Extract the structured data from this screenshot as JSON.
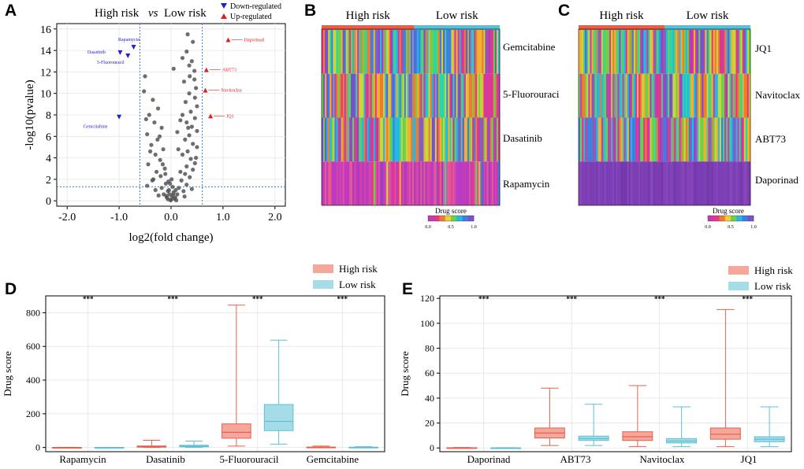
{
  "panels": {
    "a": {
      "letter": "A"
    },
    "b": {
      "letter": "B"
    },
    "c": {
      "letter": "C"
    },
    "d": {
      "letter": "D"
    },
    "e": {
      "letter": "E"
    }
  },
  "colors": {
    "high_risk": "#e8604c",
    "low_risk": "#5bc0d6",
    "high_fill": "#f4a79a",
    "low_fill": "#a6dbe8",
    "down_marker": "#2020d0",
    "up_marker": "#e02020",
    "point": "#555555",
    "cutoff_line": "#3a7fd0"
  },
  "legend_text": {
    "high": "High risk",
    "low": "Low risk",
    "drug_score_title": "Drug score",
    "colorbar_ticks": [
      "0.0",
      "0.5",
      "1.0"
    ]
  },
  "chart_data": [
    {
      "panel": "A",
      "type": "scatter",
      "title": {
        "left": "High risk",
        "vs": "vs",
        "right": "Low risk"
      },
      "xlabel": "log2(fold change)",
      "ylabel": "-log10(pvalue)",
      "xlim": [
        -2.2,
        2.2
      ],
      "ylim": [
        -0.5,
        16.5
      ],
      "xticks": [
        -2.0,
        -1.0,
        0.0,
        1.0,
        2.0
      ],
      "xtick_labels": [
        "-2.0",
        "-1.0",
        "0.0",
        "1.0",
        "2.0"
      ],
      "yticks": [
        0,
        2,
        4,
        6,
        8,
        10,
        12,
        14,
        16
      ],
      "cutoff_x": [
        -0.6,
        0.6
      ],
      "cutoff_y": 1.3,
      "legend": [
        {
          "label": "Down-regulated",
          "marker": "down-triangle"
        },
        {
          "label": "Up-regulated",
          "marker": "up-triangle"
        }
      ],
      "labeled_points": [
        {
          "name": "Rapamycin",
          "x": -0.72,
          "y": 14.3,
          "dir": "down"
        },
        {
          "name": "Dasatinib",
          "x": -0.98,
          "y": 13.8,
          "dir": "down"
        },
        {
          "name": "5-Fluorouracil",
          "x": -0.83,
          "y": 13.5,
          "dir": "down"
        },
        {
          "name": "Gemcitabine",
          "x": -1.0,
          "y": 7.8,
          "dir": "down"
        },
        {
          "name": "Daporinad",
          "x": 1.1,
          "y": 15.0,
          "dir": "up"
        },
        {
          "name": "ABT73",
          "x": 0.68,
          "y": 12.2,
          "dir": "up"
        },
        {
          "name": "Navitoclax",
          "x": 0.66,
          "y": 10.3,
          "dir": "up"
        },
        {
          "name": "JQ1",
          "x": 0.76,
          "y": 7.9,
          "dir": "up"
        }
      ],
      "points": [
        [
          0.32,
          15.5
        ],
        [
          0.42,
          14.8
        ],
        [
          0.3,
          13.9
        ],
        [
          0.22,
          13.3
        ],
        [
          0.4,
          13.0
        ],
        [
          0.05,
          12.3
        ],
        [
          0.45,
          12.1
        ],
        [
          0.36,
          11.6
        ],
        [
          0.25,
          11.1
        ],
        [
          0.48,
          10.5
        ],
        [
          0.35,
          10.0
        ],
        [
          0.46,
          9.6
        ],
        [
          0.28,
          9.2
        ],
        [
          0.5,
          8.8
        ],
        [
          0.38,
          8.3
        ],
        [
          0.22,
          8.0
        ],
        [
          0.46,
          7.7
        ],
        [
          0.3,
          7.3
        ],
        [
          0.4,
          6.9
        ],
        [
          0.5,
          6.5
        ],
        [
          0.35,
          6.1
        ],
        [
          0.27,
          5.7
        ],
        [
          0.42,
          5.3
        ],
        [
          0.5,
          5.0
        ],
        [
          0.32,
          4.6
        ],
        [
          0.22,
          4.3
        ],
        [
          0.38,
          3.9
        ],
        [
          0.46,
          3.5
        ],
        [
          0.3,
          3.2
        ],
        [
          0.42,
          2.9
        ],
        [
          0.27,
          2.5
        ],
        [
          0.36,
          2.2
        ],
        [
          0.2,
          1.9
        ],
        [
          0.3,
          1.5
        ],
        [
          0.15,
          1.2
        ],
        [
          0.24,
          0.9
        ],
        [
          0.12,
          0.6
        ],
        [
          0.08,
          0.3
        ],
        [
          0.18,
          2.7
        ],
        [
          0.14,
          4.8
        ],
        [
          0.12,
          6.4
        ],
        [
          0.35,
          12.6
        ],
        [
          0.45,
          11.3
        ],
        [
          0.18,
          7.5
        ],
        [
          0.48,
          4.0
        ],
        [
          0.4,
          1.1
        ],
        [
          0.26,
          0.4
        ],
        [
          0.33,
          6.8
        ],
        [
          -0.5,
          11.6
        ],
        [
          -0.52,
          10.2
        ],
        [
          -0.35,
          9.4
        ],
        [
          -0.25,
          8.6
        ],
        [
          -0.42,
          8.0
        ],
        [
          -0.32,
          7.3
        ],
        [
          -0.18,
          6.8
        ],
        [
          -0.46,
          6.2
        ],
        [
          -0.26,
          5.7
        ],
        [
          -0.38,
          5.2
        ],
        [
          -0.15,
          4.8
        ],
        [
          -0.3,
          4.3
        ],
        [
          -0.21,
          3.8
        ],
        [
          -0.44,
          3.4
        ],
        [
          -0.12,
          3.0
        ],
        [
          -0.28,
          2.7
        ],
        [
          -0.2,
          2.3
        ],
        [
          -0.36,
          1.9
        ],
        [
          -0.1,
          1.6
        ],
        [
          -0.18,
          1.2
        ],
        [
          -0.06,
          0.9
        ],
        [
          -0.14,
          0.6
        ],
        [
          -0.08,
          0.3
        ],
        [
          -0.3,
          1.0
        ],
        [
          -0.4,
          4.6
        ],
        [
          -0.22,
          6.0
        ],
        [
          -0.48,
          7.6
        ],
        [
          -0.16,
          3.4
        ],
        [
          -0.34,
          2.0
        ],
        [
          -0.11,
          2.5
        ],
        [
          -0.24,
          0.5
        ],
        [
          -0.46,
          1.4
        ],
        [
          0.0,
          0.1
        ],
        [
          0.02,
          0.4
        ],
        [
          -0.03,
          0.6
        ],
        [
          0.05,
          0.8
        ],
        [
          -0.04,
          1.0
        ],
        [
          0.03,
          1.3
        ],
        [
          -0.02,
          1.6
        ],
        [
          0.06,
          0.2
        ],
        [
          -0.06,
          0.15
        ],
        [
          0.09,
          1.0
        ],
        [
          -0.09,
          0.45
        ],
        [
          0.01,
          2.0
        ],
        [
          0.1,
          0.05
        ],
        [
          -0.01,
          0.05
        ],
        [
          0.04,
          0.6
        ],
        [
          -0.05,
          1.8
        ]
      ]
    },
    {
      "panel": "B",
      "type": "heatmap",
      "column_groups": [
        "High risk",
        "Low risk"
      ],
      "group_split": 0.52,
      "rows": [
        {
          "label": "Gemcitabine",
          "palette": "rainbow"
        },
        {
          "label": "5-Fluorouracil",
          "palette": "rainbow"
        },
        {
          "label": "Dasatinib",
          "palette": "rainbow"
        },
        {
          "label": "Rapamycin",
          "palette": "magenta",
          "trend": 0.35
        }
      ],
      "colorbar": {
        "title": "Drug score",
        "range": [
          0.0,
          1.0
        ],
        "ticks": [
          "0.0",
          "0.5",
          "1.0"
        ]
      }
    },
    {
      "panel": "C",
      "type": "heatmap",
      "column_groups": [
        "High risk",
        "Low risk"
      ],
      "group_split": 0.5,
      "rows": [
        {
          "label": "JQ1",
          "palette": "rainbow"
        },
        {
          "label": "Navitoclax",
          "palette": "rainbow"
        },
        {
          "label": "ABT73",
          "palette": "rainbow"
        },
        {
          "label": "Daporinad",
          "palette": "purple"
        }
      ],
      "colorbar": {
        "title": "Drug score",
        "range": [
          0.0,
          1.0
        ],
        "ticks": [
          "0.0",
          "0.5",
          "1.0"
        ]
      }
    },
    {
      "panel": "D",
      "type": "box",
      "ylabel": "Drug score",
      "ylim": [
        -25,
        900
      ],
      "yticks": [
        0,
        200,
        400,
        600,
        800
      ],
      "categories": [
        "Rapamycin",
        "Dasatinib",
        "5-Fluorouracil",
        "Gemcitabine"
      ],
      "significance": [
        "***",
        "***",
        "***",
        "***"
      ],
      "series": [
        {
          "name": "High risk",
          "boxes": [
            {
              "min": 0,
              "q1": 0,
              "median": 0,
              "q3": 0.5,
              "max": 1
            },
            {
              "min": 0,
              "q1": 2,
              "median": 5,
              "q3": 9,
              "max": 43
            },
            {
              "min": 8,
              "q1": 55,
              "median": 90,
              "q3": 140,
              "max": 845
            },
            {
              "min": 0,
              "q1": 0.5,
              "median": 1,
              "q3": 2.5,
              "max": 8
            }
          ]
        },
        {
          "name": "Low risk",
          "boxes": [
            {
              "min": 0,
              "q1": 0,
              "median": 0,
              "q3": 0.3,
              "max": 0.5
            },
            {
              "min": 0,
              "q1": 4,
              "median": 8,
              "q3": 13,
              "max": 38
            },
            {
              "min": 20,
              "q1": 100,
              "median": 155,
              "q3": 255,
              "max": 637
            },
            {
              "min": 0,
              "q1": 0.3,
              "median": 0.8,
              "q3": 1.8,
              "max": 5
            }
          ]
        }
      ]
    },
    {
      "panel": "E",
      "type": "box",
      "ylabel": "Drug score",
      "ylim": [
        -3,
        122
      ],
      "yticks": [
        0,
        20,
        40,
        60,
        80,
        100,
        120
      ],
      "categories": [
        "Daporinad",
        "ABT73",
        "Navitoclax",
        "JQ1"
      ],
      "significance": [
        "***",
        "***",
        "***",
        "***"
      ],
      "series": [
        {
          "name": "High risk",
          "boxes": [
            {
              "min": 0,
              "q1": 0,
              "median": 0.1,
              "q3": 0.2,
              "max": 0.4
            },
            {
              "min": 2,
              "q1": 8,
              "median": 12,
              "q3": 16,
              "max": 48
            },
            {
              "min": 1,
              "q1": 6,
              "median": 9,
              "q3": 13,
              "max": 50
            },
            {
              "min": 1,
              "q1": 7,
              "median": 11,
              "q3": 16,
              "max": 111
            }
          ]
        },
        {
          "name": "Low risk",
          "boxes": [
            {
              "min": 0,
              "q1": 0,
              "median": 0.05,
              "q3": 0.1,
              "max": 0.2
            },
            {
              "min": 2,
              "q1": 6,
              "median": 7.5,
              "q3": 9.5,
              "max": 35
            },
            {
              "min": 1,
              "q1": 4,
              "median": 5.5,
              "q3": 7.5,
              "max": 33
            },
            {
              "min": 1,
              "q1": 5,
              "median": 7,
              "q3": 9,
              "max": 33
            }
          ]
        }
      ]
    }
  ]
}
